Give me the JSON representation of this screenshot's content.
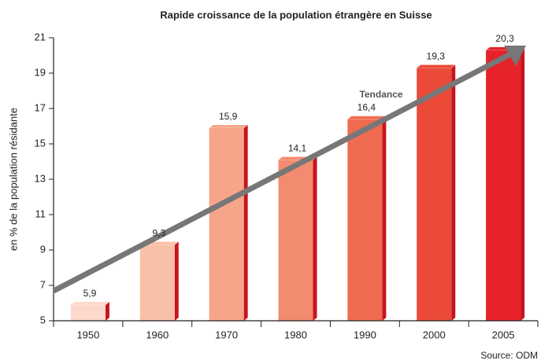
{
  "chart_data": {
    "type": "bar",
    "title": "Rapide croissance de la population étrangère en Suisse",
    "y_label": "en % de la population résidante",
    "source": "Source: ODM",
    "annotation": "Tendance",
    "categories": [
      "1950",
      "1960",
      "1970",
      "1980",
      "1990",
      "2000",
      "2005"
    ],
    "values": [
      5.9,
      9.3,
      15.9,
      14.1,
      16.4,
      19.3,
      20.3
    ],
    "value_labels": [
      "5,9",
      "9,3",
      "15,9",
      "14,1",
      "16,4",
      "19,3",
      "20,3"
    ],
    "colors": [
      "#fcd9cb",
      "#f9c0a8",
      "#f7a58a",
      "#f38b70",
      "#ef6c51",
      "#ea4a37",
      "#e6232b"
    ],
    "ylim": [
      5,
      21
    ],
    "yticks": [
      5,
      7,
      9,
      11,
      13,
      15,
      17,
      19,
      21
    ]
  }
}
